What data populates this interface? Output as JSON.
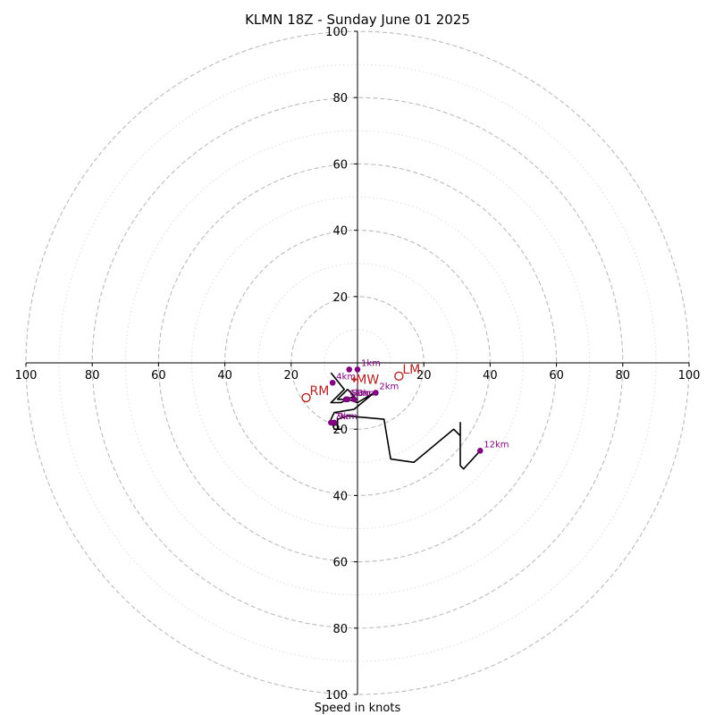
{
  "chart_data": {
    "type": "hodograph",
    "title": "KLMN 18Z - Sunday June 01 2025",
    "xlabel": "Speed in knots",
    "range": [
      -100,
      100
    ],
    "ring_values": [
      20,
      40,
      60,
      80,
      100
    ],
    "minor_ring_values": [
      10,
      30,
      50,
      70,
      90
    ],
    "x_tick_labels": [
      "100",
      "80",
      "60",
      "40",
      "20",
      "20",
      "40",
      "60",
      "80",
      "100"
    ],
    "x_tick_values": [
      -100,
      -80,
      -60,
      -40,
      -20,
      20,
      40,
      60,
      80,
      100
    ],
    "y_tick_labels": [
      "100",
      "80",
      "60",
      "40",
      "20",
      "20",
      "40",
      "60",
      "80",
      "100"
    ],
    "y_tick_values": [
      100,
      80,
      60,
      40,
      20,
      -20,
      -40,
      -60,
      -80,
      -100
    ],
    "trace": [
      [
        -8,
        -3
      ],
      [
        -4,
        -8
      ],
      [
        -8,
        -12
      ],
      [
        -5,
        -12
      ],
      [
        -3,
        -11
      ],
      [
        -1,
        -10
      ],
      [
        -3,
        -8
      ],
      [
        -6,
        -11
      ],
      [
        -3,
        -11
      ],
      [
        0,
        -12
      ],
      [
        5,
        -9
      ],
      [
        -1,
        -14
      ],
      [
        -7,
        -15
      ],
      [
        -8,
        -17
      ],
      [
        -7,
        -20
      ],
      [
        -5,
        -20
      ],
      [
        -6,
        -20
      ],
      [
        -6,
        -17
      ],
      [
        -3,
        -16
      ],
      [
        8,
        -17
      ],
      [
        10,
        -29
      ],
      [
        17,
        -30
      ],
      [
        29,
        -20
      ],
      [
        31,
        -22
      ],
      [
        31,
        -18
      ],
      [
        31,
        -31
      ],
      [
        32,
        -32
      ],
      [
        37,
        -26.5
      ]
    ],
    "height_points": [
      {
        "label": "",
        "u": -2.5,
        "v": -2
      },
      {
        "label": "1km",
        "u": 0,
        "v": -2
      },
      {
        "label": "2km",
        "u": 5.5,
        "v": -9
      },
      {
        "label": "3km",
        "u": -1,
        "v": -11
      },
      {
        "label": "4km",
        "u": -7.5,
        "v": -6
      },
      {
        "label": "5km",
        "u": -3,
        "v": -11
      },
      {
        "label": "6km",
        "u": -3.5,
        "v": -11
      },
      {
        "label": "7km",
        "u": -8,
        "v": -18
      },
      {
        "label": "9km",
        "u": -7,
        "v": -18
      },
      {
        "label": "12km",
        "u": 37,
        "v": -26.5
      }
    ],
    "motions": [
      {
        "label": "LM",
        "u": 12.5,
        "v": -4
      },
      {
        "label": "MW",
        "u": -1,
        "v": -5
      },
      {
        "label": "RM",
        "u": -15.5,
        "v": -10.5
      }
    ],
    "colors": {
      "trace": "#000000",
      "height_points": "#800080",
      "motions": "#b22222",
      "major_rings": "#bbbbbb",
      "minor_rings": "#dddddd"
    }
  }
}
